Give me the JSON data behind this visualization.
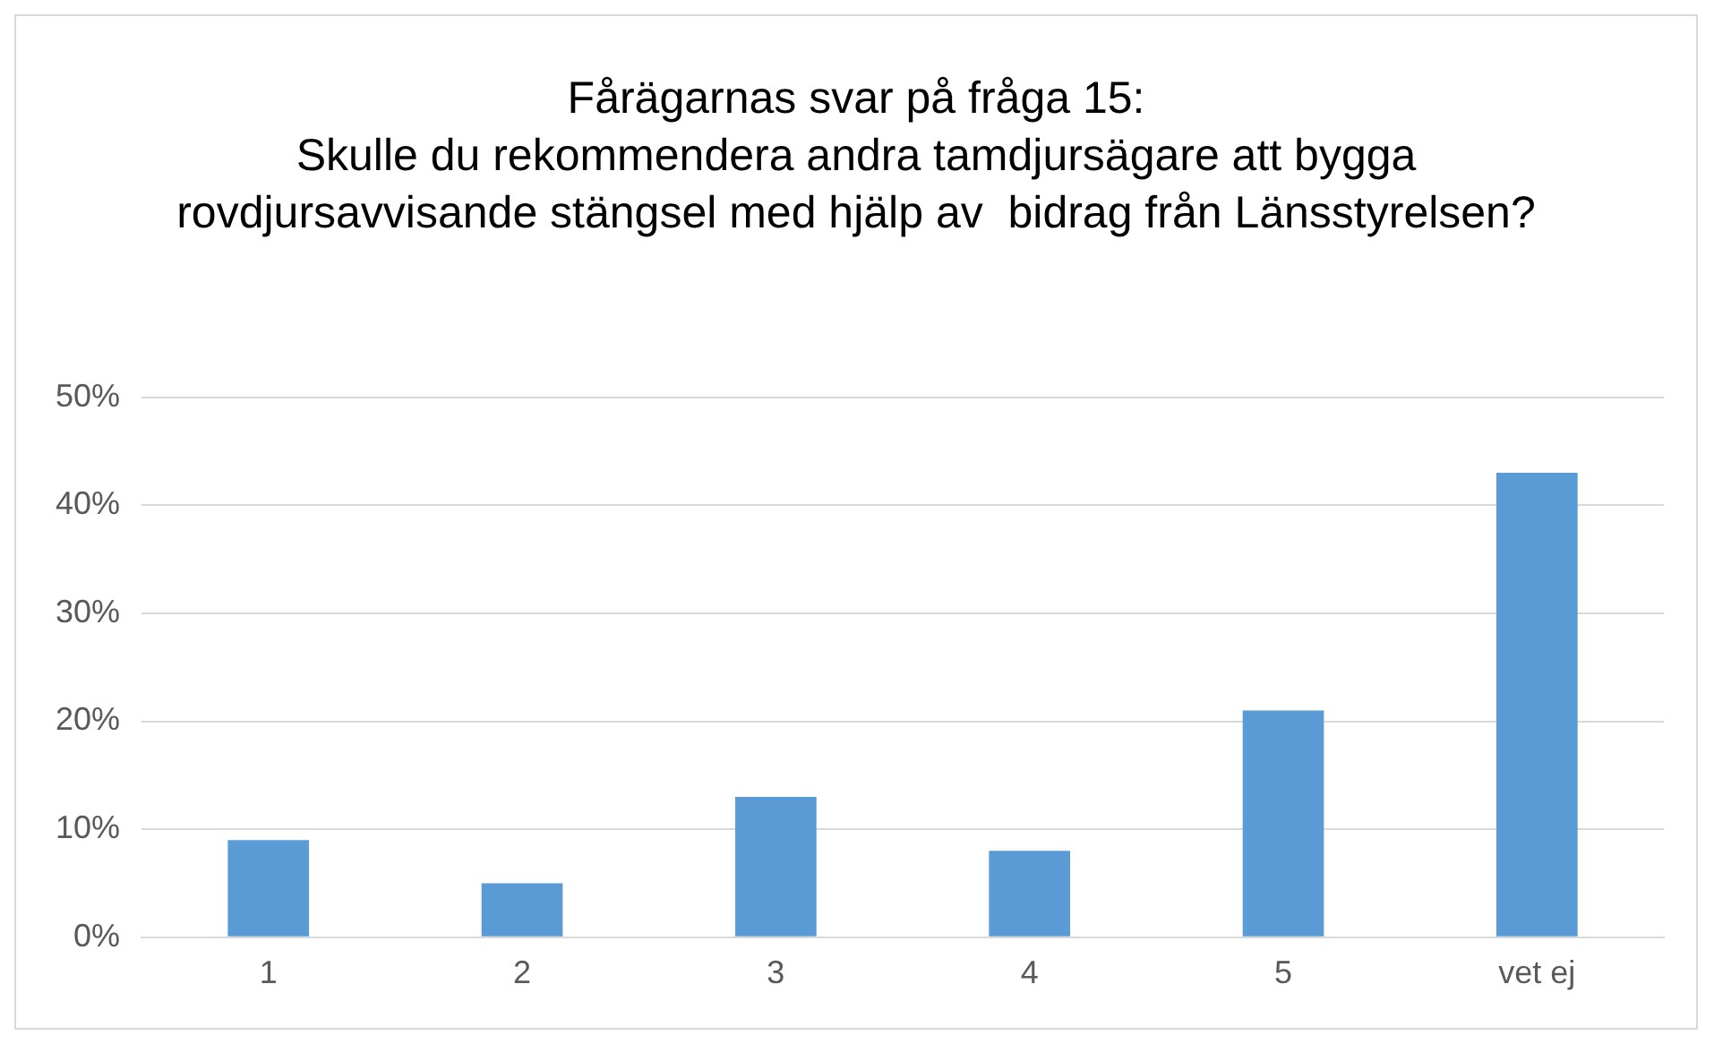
{
  "chart_data": {
    "type": "bar",
    "title": "Fårägarnas svar på fråga 15:\nSkulle du rekommendera andra tamdjursägare att bygga rovdjursavvisande stängsel med hjälp av  bidrag från Länsstyrelsen?",
    "categories": [
      "1",
      "2",
      "3",
      "4",
      "5",
      "vet ej"
    ],
    "values": [
      9,
      5,
      13,
      8,
      21,
      43
    ],
    "color": "#5b9bd5",
    "ylim": [
      0,
      50
    ],
    "yticks": [
      {
        "value": 0,
        "label": "0%"
      },
      {
        "value": 10,
        "label": "10%"
      },
      {
        "value": 20,
        "label": "20%"
      },
      {
        "value": 30,
        "label": "30%"
      },
      {
        "value": 40,
        "label": "40%"
      },
      {
        "value": 50,
        "label": "50%"
      }
    ],
    "grid": "y",
    "legend": false
  }
}
